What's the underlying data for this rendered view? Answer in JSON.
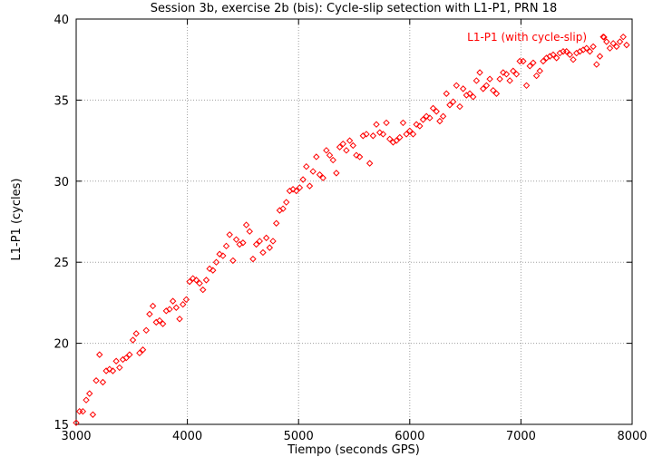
{
  "chart_data": {
    "type": "scatter",
    "title": "Session 3b, exercise 2b (bis): Cycle-slip setection with L1-P1, PRN 18",
    "xlabel": "Tiempo (seconds GPS)",
    "ylabel": "L1-P1 (cycles)",
    "xlim": [
      3000,
      8000
    ],
    "ylim": [
      15,
      40
    ],
    "xticks": [
      3000,
      4000,
      5000,
      6000,
      7000,
      8000
    ],
    "yticks": [
      15,
      20,
      25,
      30,
      35,
      40
    ],
    "grid": true,
    "legend_position": "top-right",
    "series": [
      {
        "name": "L1-P1 (with cycle-slip)",
        "color": "#ff0000",
        "marker": "diamond",
        "points": [
          [
            3000,
            15.1
          ],
          [
            3030,
            15.8
          ],
          [
            3060,
            15.8
          ],
          [
            3090,
            16.5
          ],
          [
            3120,
            16.9
          ],
          [
            3150,
            15.6
          ],
          [
            3180,
            17.7
          ],
          [
            3210,
            19.3
          ],
          [
            3240,
            17.6
          ],
          [
            3270,
            18.3
          ],
          [
            3300,
            18.4
          ],
          [
            3330,
            18.3
          ],
          [
            3360,
            18.9
          ],
          [
            3390,
            18.5
          ],
          [
            3420,
            19.0
          ],
          [
            3450,
            19.1
          ],
          [
            3480,
            19.3
          ],
          [
            3510,
            20.2
          ],
          [
            3540,
            20.6
          ],
          [
            3570,
            19.4
          ],
          [
            3600,
            19.6
          ],
          [
            3630,
            20.8
          ],
          [
            3660,
            21.8
          ],
          [
            3690,
            22.3
          ],
          [
            3720,
            21.3
          ],
          [
            3750,
            21.4
          ],
          [
            3780,
            21.2
          ],
          [
            3810,
            22.0
          ],
          [
            3840,
            22.1
          ],
          [
            3870,
            22.6
          ],
          [
            3900,
            22.2
          ],
          [
            3930,
            21.5
          ],
          [
            3960,
            22.4
          ],
          [
            3990,
            22.7
          ],
          [
            4020,
            23.8
          ],
          [
            4050,
            24.0
          ],
          [
            4080,
            23.9
          ],
          [
            4110,
            23.7
          ],
          [
            4140,
            23.3
          ],
          [
            4170,
            23.9
          ],
          [
            4200,
            24.6
          ],
          [
            4230,
            24.5
          ],
          [
            4260,
            25.0
          ],
          [
            4290,
            25.5
          ],
          [
            4320,
            25.4
          ],
          [
            4350,
            26.0
          ],
          [
            4380,
            26.7
          ],
          [
            4410,
            25.1
          ],
          [
            4440,
            26.4
          ],
          [
            4470,
            26.1
          ],
          [
            4500,
            26.2
          ],
          [
            4530,
            27.3
          ],
          [
            4560,
            26.9
          ],
          [
            4590,
            25.2
          ],
          [
            4620,
            26.1
          ],
          [
            4650,
            26.3
          ],
          [
            4680,
            25.6
          ],
          [
            4710,
            26.5
          ],
          [
            4740,
            25.9
          ],
          [
            4770,
            26.3
          ],
          [
            4800,
            27.4
          ],
          [
            4830,
            28.2
          ],
          [
            4860,
            28.3
          ],
          [
            4890,
            28.7
          ],
          [
            4920,
            29.4
          ],
          [
            4950,
            29.5
          ],
          [
            4980,
            29.4
          ],
          [
            5010,
            29.6
          ],
          [
            5040,
            30.1
          ],
          [
            5070,
            30.9
          ],
          [
            5100,
            29.7
          ],
          [
            5130,
            30.6
          ],
          [
            5160,
            31.5
          ],
          [
            5190,
            30.4
          ],
          [
            5220,
            30.2
          ],
          [
            5250,
            31.9
          ],
          [
            5280,
            31.6
          ],
          [
            5310,
            31.3
          ],
          [
            5340,
            30.5
          ],
          [
            5370,
            32.1
          ],
          [
            5400,
            32.3
          ],
          [
            5430,
            31.9
          ],
          [
            5460,
            32.5
          ],
          [
            5490,
            32.2
          ],
          [
            5520,
            31.6
          ],
          [
            5550,
            31.5
          ],
          [
            5580,
            32.8
          ],
          [
            5610,
            32.9
          ],
          [
            5640,
            31.1
          ],
          [
            5670,
            32.8
          ],
          [
            5700,
            33.5
          ],
          [
            5730,
            33.0
          ],
          [
            5760,
            32.9
          ],
          [
            5790,
            33.6
          ],
          [
            5820,
            32.6
          ],
          [
            5850,
            32.4
          ],
          [
            5880,
            32.5
          ],
          [
            5910,
            32.7
          ],
          [
            5940,
            33.6
          ],
          [
            5970,
            32.9
          ],
          [
            6000,
            33.1
          ],
          [
            6030,
            32.9
          ],
          [
            6060,
            33.5
          ],
          [
            6090,
            33.4
          ],
          [
            6120,
            33.8
          ],
          [
            6150,
            34.0
          ],
          [
            6180,
            33.9
          ],
          [
            6210,
            34.5
          ],
          [
            6240,
            34.3
          ],
          [
            6270,
            33.7
          ],
          [
            6300,
            34.0
          ],
          [
            6330,
            35.4
          ],
          [
            6360,
            34.7
          ],
          [
            6390,
            34.9
          ],
          [
            6420,
            35.9
          ],
          [
            6450,
            34.6
          ],
          [
            6480,
            35.7
          ],
          [
            6510,
            35.3
          ],
          [
            6540,
            35.4
          ],
          [
            6570,
            35.2
          ],
          [
            6600,
            36.2
          ],
          [
            6630,
            36.7
          ],
          [
            6660,
            35.7
          ],
          [
            6690,
            35.9
          ],
          [
            6720,
            36.3
          ],
          [
            6750,
            35.6
          ],
          [
            6780,
            35.4
          ],
          [
            6810,
            36.3
          ],
          [
            6840,
            36.7
          ],
          [
            6870,
            36.6
          ],
          [
            6900,
            36.2
          ],
          [
            6930,
            36.8
          ],
          [
            6960,
            36.6
          ],
          [
            6990,
            37.4
          ],
          [
            7020,
            37.4
          ],
          [
            7050,
            35.9
          ],
          [
            7080,
            37.1
          ],
          [
            7110,
            37.3
          ],
          [
            7140,
            36.5
          ],
          [
            7170,
            36.8
          ],
          [
            7200,
            37.4
          ],
          [
            7230,
            37.6
          ],
          [
            7260,
            37.7
          ],
          [
            7290,
            37.8
          ],
          [
            7320,
            37.6
          ],
          [
            7350,
            37.9
          ],
          [
            7380,
            38.0
          ],
          [
            7410,
            38.0
          ],
          [
            7440,
            37.8
          ],
          [
            7470,
            37.5
          ],
          [
            7500,
            37.9
          ],
          [
            7530,
            38.0
          ],
          [
            7560,
            38.1
          ],
          [
            7590,
            38.2
          ],
          [
            7620,
            38.0
          ],
          [
            7650,
            38.3
          ],
          [
            7680,
            37.2
          ],
          [
            7710,
            37.7
          ],
          [
            7740,
            38.9
          ],
          [
            7770,
            38.6
          ],
          [
            7800,
            38.2
          ],
          [
            7830,
            38.5
          ],
          [
            7860,
            38.3
          ],
          [
            7890,
            38.6
          ],
          [
            7920,
            38.9
          ],
          [
            7950,
            38.4
          ]
        ]
      }
    ]
  }
}
